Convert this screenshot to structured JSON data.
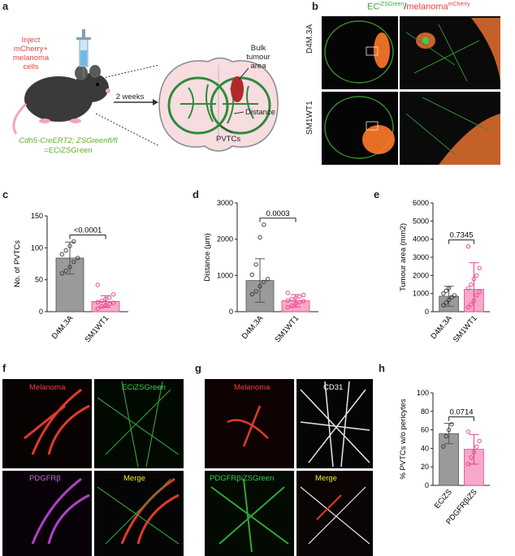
{
  "panel_labels": {
    "a": "a",
    "b": "b",
    "c": "c",
    "d": "d",
    "e": "e",
    "f": "f",
    "g": "g",
    "h": "h"
  },
  "schematic": {
    "inject_line1": "Inject",
    "inject_line2": "mCherry+",
    "inject_line3": "melanoma",
    "inject_line4": "cells",
    "weeks": "2 weeks",
    "bulk_line1": "Bulk",
    "bulk_line2": "tumour",
    "bulk_line3": "area",
    "distance": "Distance",
    "pvtcs": "PVTCs",
    "mouse_line1": "Cdh5-CreERT2; ZSGreenfl/fl",
    "mouse_line2": "=ECiZSGreen",
    "colors": {
      "green": "#5fae2e",
      "red": "#e8423f"
    }
  },
  "panel_b": {
    "title_green": "EC",
    "title_green_sup": "iZSGreen",
    "title_sep": "/",
    "title_red": "melanoma",
    "title_red_sup": "mCherry",
    "row1": "D4M.3A",
    "row2": "SM1WT1"
  },
  "chart_data": [
    {
      "panel": "c",
      "type": "bar",
      "categories": [
        "D4M.3A",
        "SM1WT1"
      ],
      "values": [
        84,
        16
      ],
      "errors": [
        25,
        9
      ],
      "ylabel": "No. of PVTCs",
      "ylim": [
        0,
        150
      ],
      "yticks": [
        0,
        50,
        100,
        150
      ],
      "p_value": "<0.0001",
      "points": [
        [
          60,
          64,
          70,
          78,
          84,
          90,
          96,
          103,
          110
        ],
        [
          5,
          8,
          10,
          12,
          14,
          15,
          17,
          20,
          22,
          27,
          42
        ]
      ]
    },
    {
      "panel": "d",
      "type": "bar",
      "categories": [
        "D4M.3A",
        "SM1WT1"
      ],
      "values": [
        860,
        300
      ],
      "errors": [
        600,
        170
      ],
      "ylabel": "Distance (µm)",
      "ylim": [
        0,
        3000
      ],
      "yticks": [
        0,
        1000,
        2000,
        3000
      ],
      "p_value": "0.0003",
      "points": [
        [
          480,
          560,
          700,
          820,
          900,
          1020,
          1300,
          2050,
          2400
        ],
        [
          120,
          160,
          220,
          260,
          290,
          310,
          350,
          380,
          420,
          460,
          520
        ]
      ]
    },
    {
      "panel": "e",
      "type": "bar",
      "categories": [
        "D4M.3A",
        "SM1WT1"
      ],
      "values": [
        850,
        1230
      ],
      "errors": [
        550,
        1470
      ],
      "ylabel": "Tumour area (mm2)",
      "ylim": [
        0,
        6000
      ],
      "yticks": [
        0,
        1000,
        2000,
        3000,
        4000,
        5000,
        6000
      ],
      "p_value": "0.7345",
      "points": [
        [
          350,
          500,
          650,
          800,
          900,
          1000,
          1150,
          1300
        ],
        [
          250,
          400,
          600,
          900,
          1100,
          1300,
          1500,
          1800,
          2000,
          2400,
          3600
        ]
      ]
    },
    {
      "panel": "h",
      "type": "bar",
      "categories": [
        "ECiZS",
        "PDGFRβiZS"
      ],
      "values": [
        56,
        39
      ],
      "errors": [
        11,
        16
      ],
      "ylabel": "% PVTCs w/o pericytes",
      "ylim": [
        0,
        100
      ],
      "yticks": [
        0,
        20,
        40,
        60,
        80,
        100
      ],
      "p_value": "0.0714",
      "points": [
        [
          42,
          53,
          60,
          66
        ],
        [
          23,
          30,
          36,
          42,
          48,
          58
        ]
      ]
    }
  ],
  "panel_f": {
    "q1": "Melanoma",
    "q2": "ECiZSGreen",
    "q3": "PDGFRβ",
    "q4": "Merge"
  },
  "panel_g": {
    "q1": "Melanoma",
    "q2": "CD31",
    "q3": "PDGFRβiZSGreen",
    "q4": "Merge"
  },
  "colors": {
    "dark_bar": "#9a9a9a",
    "pink_bar": "#f6a9c8",
    "pink_point": "#e8408a"
  }
}
